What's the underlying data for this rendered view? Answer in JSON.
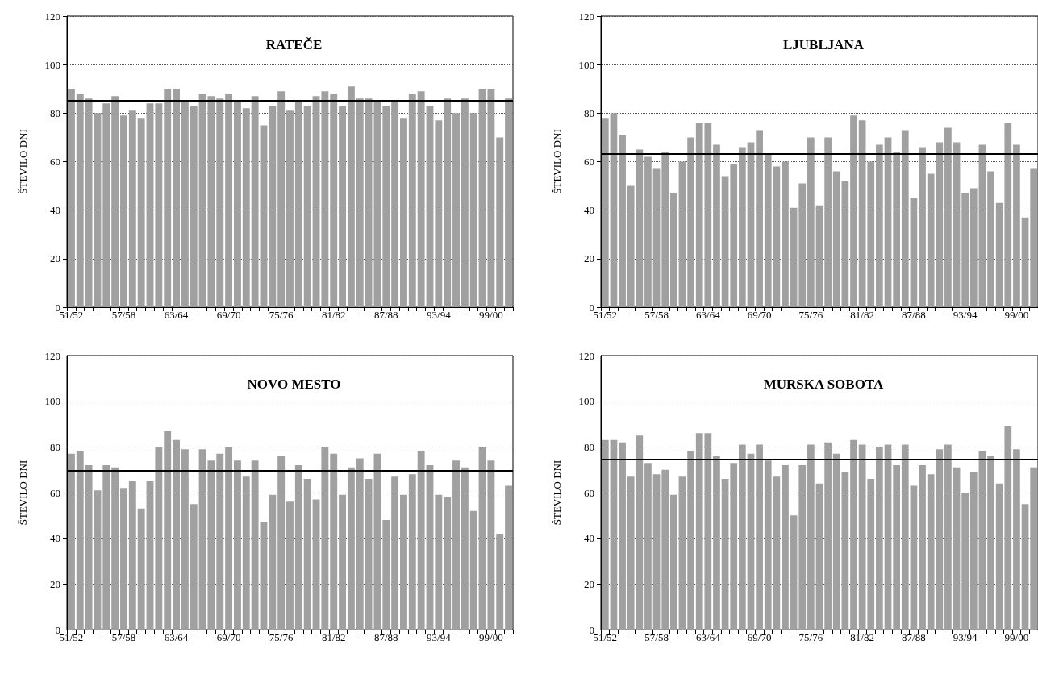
{
  "chart_data": [
    {
      "type": "bar",
      "title": "RATEČE",
      "ylabel": "ŠTEVILO DNI",
      "categories": [
        "51/52",
        null,
        null,
        null,
        null,
        null,
        "57/58",
        null,
        null,
        null,
        null,
        null,
        "63/64",
        null,
        null,
        null,
        null,
        null,
        "69/70",
        null,
        null,
        null,
        null,
        null,
        "75/76",
        null,
        null,
        null,
        null,
        null,
        "81/82",
        null,
        null,
        null,
        null,
        null,
        "87/88",
        null,
        null,
        null,
        null,
        null,
        "93/94",
        null,
        null,
        null,
        null,
        null,
        "99/00",
        null,
        null
      ],
      "series": [
        {
          "color": "#a0a0a0",
          "values": [
            90,
            88,
            86,
            80,
            84,
            87,
            79,
            81,
            78,
            84,
            84,
            90,
            90,
            85,
            83,
            88,
            87,
            86,
            88,
            85,
            82,
            87,
            75,
            83,
            89,
            81,
            85,
            83,
            87,
            89,
            88,
            83,
            91,
            86,
            86,
            85,
            83,
            85,
            78,
            88,
            89,
            83,
            77,
            86,
            80,
            86,
            80,
            90,
            90,
            70,
            86
          ]
        }
      ],
      "ylim": [
        0,
        120
      ],
      "yticks": [
        0,
        20,
        40,
        60,
        80,
        100,
        120
      ],
      "grid": "y",
      "ref_lines": [
        {
          "axis": "y",
          "value": 85.3,
          "color": "#000000"
        }
      ]
    },
    {
      "type": "bar",
      "title": "LJUBLJANA",
      "ylabel": "ŠTEVILO DNI",
      "categories": [
        "51/52",
        null,
        null,
        null,
        null,
        null,
        "57/58",
        null,
        null,
        null,
        null,
        null,
        "63/64",
        null,
        null,
        null,
        null,
        null,
        "69/70",
        null,
        null,
        null,
        null,
        null,
        "75/76",
        null,
        null,
        null,
        null,
        null,
        "81/82",
        null,
        null,
        null,
        null,
        null,
        "87/88",
        null,
        null,
        null,
        null,
        null,
        "93/94",
        null,
        null,
        null,
        null,
        null,
        "99/00",
        null,
        null
      ],
      "series": [
        {
          "color": "#a0a0a0",
          "values": [
            78,
            80,
            71,
            50,
            65,
            62,
            57,
            64,
            47,
            60,
            70,
            76,
            76,
            67,
            54,
            59,
            66,
            68,
            73,
            63,
            58,
            60,
            41,
            51,
            70,
            42,
            70,
            56,
            52,
            79,
            77,
            60,
            67,
            70,
            64,
            73,
            45,
            66,
            55,
            68,
            74,
            68,
            47,
            49,
            67,
            56,
            43,
            76,
            67,
            37,
            57
          ]
        }
      ],
      "ylim": [
        0,
        120
      ],
      "yticks": [
        0,
        20,
        40,
        60,
        80,
        100,
        120
      ],
      "grid": "y",
      "ref_lines": [
        {
          "axis": "y",
          "value": 63.3,
          "color": "#000000"
        }
      ]
    },
    {
      "type": "bar",
      "title": "NOVO MESTO",
      "ylabel": "ŠTEVILO DNI",
      "categories": [
        "51/52",
        null,
        null,
        null,
        null,
        null,
        "57/58",
        null,
        null,
        null,
        null,
        null,
        "63/64",
        null,
        null,
        null,
        null,
        null,
        "69/70",
        null,
        null,
        null,
        null,
        null,
        "75/76",
        null,
        null,
        null,
        null,
        null,
        "81/82",
        null,
        null,
        null,
        null,
        null,
        "87/88",
        null,
        null,
        null,
        null,
        null,
        "93/94",
        null,
        null,
        null,
        null,
        null,
        "99/00",
        null,
        null
      ],
      "series": [
        {
          "color": "#a0a0a0",
          "values": [
            77,
            78,
            72,
            61,
            72,
            71,
            62,
            65,
            53,
            65,
            80,
            87,
            83,
            79,
            55,
            79,
            74,
            77,
            80,
            74,
            67,
            74,
            47,
            59,
            76,
            56,
            72,
            66,
            57,
            80,
            77,
            59,
            71,
            75,
            66,
            77,
            48,
            67,
            59,
            68,
            78,
            72,
            59,
            58,
            74,
            71,
            52,
            80,
            74,
            42,
            63
          ]
        }
      ],
      "ylim": [
        0,
        120
      ],
      "yticks": [
        0,
        20,
        40,
        60,
        80,
        100,
        120
      ],
      "grid": "y",
      "ref_lines": [
        {
          "axis": "y",
          "value": 69.6,
          "color": "#000000"
        }
      ]
    },
    {
      "type": "bar",
      "title": "MURSKA SOBOTA",
      "ylabel": "ŠTEVILO DNI",
      "categories": [
        "51/52",
        null,
        null,
        null,
        null,
        null,
        "57/58",
        null,
        null,
        null,
        null,
        null,
        "63/64",
        null,
        null,
        null,
        null,
        null,
        "69/70",
        null,
        null,
        null,
        null,
        null,
        "75/76",
        null,
        null,
        null,
        null,
        null,
        "81/82",
        null,
        null,
        null,
        null,
        null,
        "87/88",
        null,
        null,
        null,
        null,
        null,
        "93/94",
        null,
        null,
        null,
        null,
        null,
        "99/00",
        null,
        null
      ],
      "series": [
        {
          "color": "#a0a0a0",
          "values": [
            83,
            83,
            82,
            67,
            85,
            73,
            68,
            70,
            59,
            67,
            78,
            86,
            86,
            76,
            66,
            73,
            81,
            77,
            81,
            74,
            67,
            72,
            50,
            72,
            81,
            64,
            82,
            77,
            69,
            83,
            81,
            66,
            80,
            81,
            72,
            81,
            63,
            72,
            68,
            79,
            81,
            71,
            60,
            69,
            78,
            76,
            64,
            89,
            79,
            55,
            71
          ]
        }
      ],
      "ylim": [
        0,
        120
      ],
      "yticks": [
        0,
        20,
        40,
        60,
        80,
        100,
        120
      ],
      "grid": "y",
      "ref_lines": [
        {
          "axis": "y",
          "value": 74.5,
          "color": "#000000"
        }
      ]
    }
  ]
}
